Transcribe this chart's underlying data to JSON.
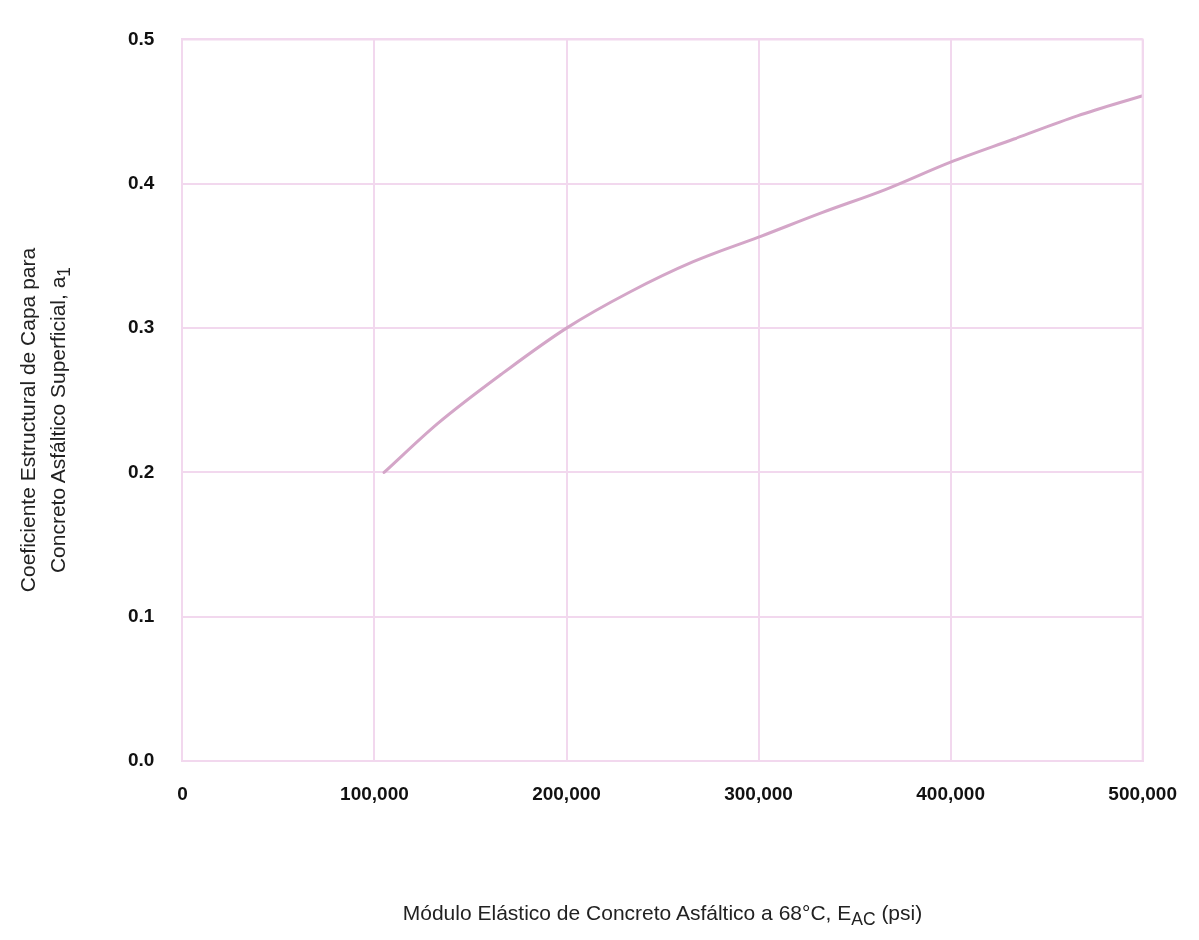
{
  "chart_data": {
    "type": "line",
    "xlabel": "Módulo Elástico de Concreto Asfáltico a 68°C, E$_{AC}$ (psi)",
    "ylabel": "Coeficiente Estructural de Capa para Concreto Asfáltico Superficial, a$_{1}$",
    "x": [
      105000,
      133000,
      166000,
      200000,
      233000,
      266000,
      300000,
      333000,
      366000,
      400000,
      433000,
      466000,
      500000
    ],
    "series": [
      {
        "color": "#d4a6c8",
        "values": [
          0.2,
          0.234,
          0.268,
          0.3,
          0.325,
          0.346,
          0.363,
          0.38,
          0.396,
          0.415,
          0.431,
          0.447,
          0.461
        ]
      }
    ],
    "xlim": [
      0,
      500000
    ],
    "xticks": [
      0,
      {
        "value": 100000,
        "label": "100,000"
      },
      {
        "value": 200000,
        "label": "200,000"
      },
      {
        "value": 300000,
        "label": "300,000"
      },
      {
        "value": 400000,
        "label": "400,000"
      },
      {
        "value": 500000,
        "label": "500,000"
      }
    ],
    "ylim": [
      0,
      0.5
    ],
    "yticks": [
      {
        "value": 0,
        "label": "0.0"
      },
      0.1,
      0.2,
      0.3,
      0.4,
      0.5
    ],
    "grid": true,
    "legend": false,
    "marker": "none",
    "line_style": "solid"
  }
}
